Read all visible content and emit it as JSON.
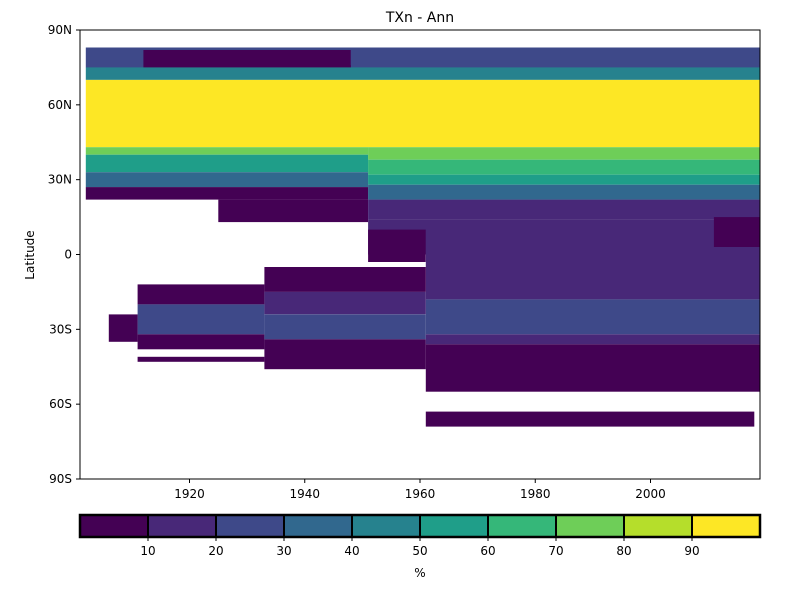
{
  "chart_data": {
    "type": "heatmap",
    "title": "TXn - Ann",
    "xlabel": "",
    "ylabel": "Latitude",
    "xlim": [
      1901,
      2019
    ],
    "ylim": [
      -90,
      90
    ],
    "xticks": [
      {
        "value": 1920,
        "label": "1920"
      },
      {
        "value": 1940,
        "label": "1940"
      },
      {
        "value": 1960,
        "label": "1960"
      },
      {
        "value": 1980,
        "label": "1980"
      },
      {
        "value": 2000,
        "label": "2000"
      }
    ],
    "yticks": [
      {
        "value": 90,
        "label": "90N"
      },
      {
        "value": 60,
        "label": "60N"
      },
      {
        "value": 30,
        "label": "30N"
      },
      {
        "value": 0,
        "label": "0"
      },
      {
        "value": -30,
        "label": "30S"
      },
      {
        "value": -60,
        "label": "60S"
      },
      {
        "value": -90,
        "label": "90S"
      }
    ],
    "grid": false,
    "colorbar": {
      "orientation": "horizontal",
      "location": "bottom",
      "label": "%",
      "bounds": [
        0,
        10,
        20,
        30,
        40,
        50,
        60,
        70,
        80,
        90,
        100
      ],
      "tick_labels": [
        "10",
        "20",
        "30",
        "40",
        "50",
        "60",
        "70",
        "80",
        "90"
      ],
      "colors": [
        "#440154",
        "#482878",
        "#3e4989",
        "#31688e",
        "#26828e",
        "#1f9e89",
        "#35b779",
        "#6ece58",
        "#b5de2b",
        "#fde725"
      ]
    },
    "regions": [
      {
        "x0": 1902,
        "x1": 2019,
        "y0": 75,
        "y1": 83,
        "value": 25
      },
      {
        "x0": 1912,
        "x1": 1948,
        "y0": 73,
        "y1": 82,
        "value": 5
      },
      {
        "x0": 1948,
        "x1": 2019,
        "y0": 76,
        "y1": 83,
        "value": 28
      },
      {
        "x0": 1902,
        "x1": 2019,
        "y0": 70,
        "y1": 75,
        "value": 45
      },
      {
        "x0": 1902,
        "x1": 2019,
        "y0": 43,
        "y1": 70,
        "value": 95
      },
      {
        "x0": 1902,
        "x1": 1951,
        "y0": 40,
        "y1": 43,
        "value": 70
      },
      {
        "x0": 1902,
        "x1": 1951,
        "y0": 33,
        "y1": 40,
        "value": 55
      },
      {
        "x0": 1902,
        "x1": 1951,
        "y0": 27,
        "y1": 33,
        "value": 35
      },
      {
        "x0": 1902,
        "x1": 1951,
        "y0": 22,
        "y1": 27,
        "value": 5
      },
      {
        "x0": 1925,
        "x1": 1951,
        "y0": 13,
        "y1": 22,
        "value": 5
      },
      {
        "x0": 1951,
        "x1": 2019,
        "y0": 38,
        "y1": 43,
        "value": 75
      },
      {
        "x0": 1951,
        "x1": 2019,
        "y0": 32,
        "y1": 38,
        "value": 65
      },
      {
        "x0": 1951,
        "x1": 2019,
        "y0": 28,
        "y1": 32,
        "value": 55
      },
      {
        "x0": 1951,
        "x1": 2019,
        "y0": 22,
        "y1": 28,
        "value": 35
      },
      {
        "x0": 1951,
        "x1": 2019,
        "y0": 14,
        "y1": 22,
        "value": 15
      },
      {
        "x0": 1951,
        "x1": 2019,
        "y0": 0,
        "y1": 14,
        "value": 12
      },
      {
        "x0": 1951,
        "x1": 1961,
        "y0": -3,
        "y1": 10,
        "value": 5
      },
      {
        "x0": 2011,
        "x1": 2019,
        "y0": 3,
        "y1": 15,
        "value": 5
      },
      {
        "x0": 1961,
        "x1": 2019,
        "y0": -18,
        "y1": 0,
        "value": 15
      },
      {
        "x0": 1961,
        "x1": 2019,
        "y0": -32,
        "y1": -18,
        "value": 25
      },
      {
        "x0": 1911,
        "x1": 1933,
        "y0": -12,
        "y1": -20,
        "value": 5
      },
      {
        "x0": 1911,
        "x1": 1933,
        "y0": -20,
        "y1": -32,
        "value": 25
      },
      {
        "x0": 1911,
        "x1": 1933,
        "y0": -32,
        "y1": -38,
        "value": 5
      },
      {
        "x0": 1933,
        "x1": 1961,
        "y0": -5,
        "y1": -15,
        "value": 5
      },
      {
        "x0": 1933,
        "x1": 1961,
        "y0": -15,
        "y1": -24,
        "value": 15
      },
      {
        "x0": 1933,
        "x1": 1961,
        "y0": -24,
        "y1": -34,
        "value": 25
      },
      {
        "x0": 1933,
        "x1": 1961,
        "y0": -34,
        "y1": -46,
        "value": 5
      },
      {
        "x0": 1961,
        "x1": 2019,
        "y0": -32,
        "y1": -36,
        "value": 15
      },
      {
        "x0": 1961,
        "x1": 2019,
        "y0": -36,
        "y1": -55,
        "value": 5
      },
      {
        "x0": 1906,
        "x1": 1911,
        "y0": -24,
        "y1": -35,
        "value": 5
      },
      {
        "x0": 1911,
        "x1": 1933,
        "y0": -41,
        "y1": -43,
        "value": 5
      },
      {
        "x0": 1961,
        "x1": 2018,
        "y0": -63,
        "y1": -69,
        "value": 5
      }
    ]
  }
}
